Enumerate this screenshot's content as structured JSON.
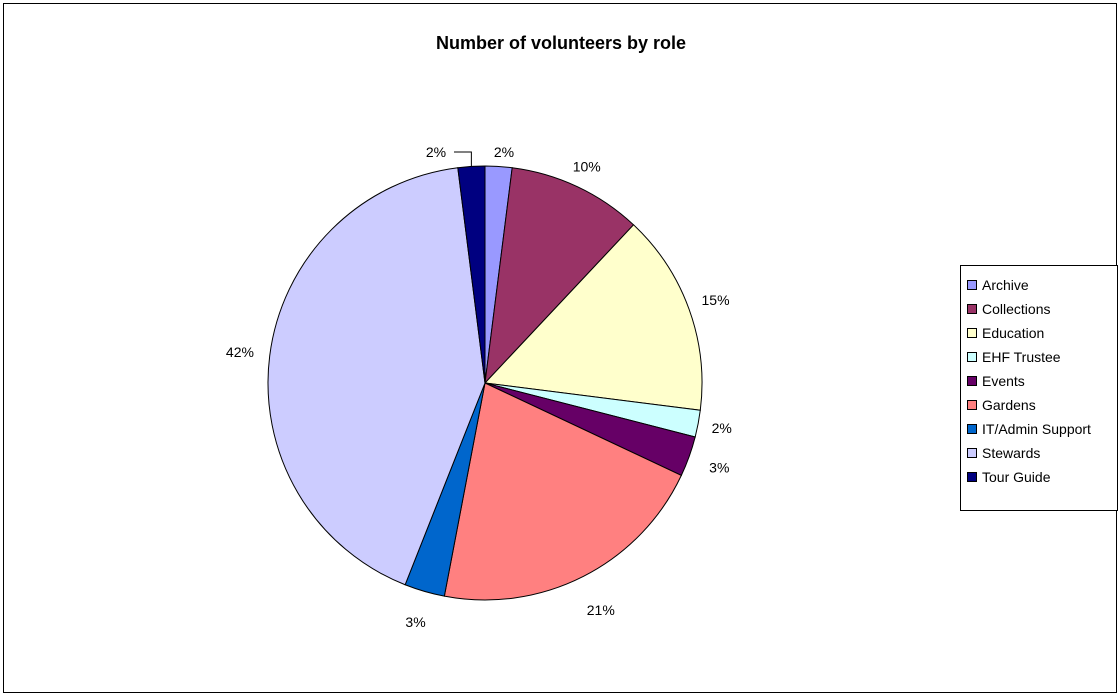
{
  "chart_data": {
    "type": "pie",
    "title": "Number of volunteers by role",
    "categories": [
      "Archive",
      "Collections",
      "Education",
      "EHF Trustee",
      "Events",
      "Gardens",
      "IT/Admin Support",
      "Stewards",
      "Tour Guide"
    ],
    "values": [
      2,
      10,
      15,
      2,
      3,
      21,
      3,
      42,
      2
    ],
    "value_labels": [
      "2%",
      "10%",
      "15%",
      "2%",
      "3%",
      "21%",
      "3%",
      "42%",
      "2%"
    ],
    "colors": [
      "#9999FF",
      "#993366",
      "#FFFFCC",
      "#CCFFFF",
      "#660066",
      "#FF8080",
      "#0066CC",
      "#CCCCFF",
      "#000080"
    ],
    "legend_placement": "right",
    "start_angle": "12 o'clock",
    "direction": "clockwise",
    "grid": false
  }
}
